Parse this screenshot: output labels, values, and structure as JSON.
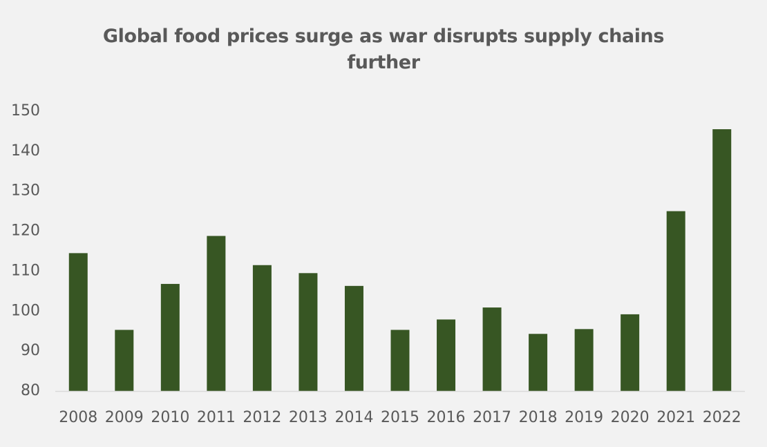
{
  "chart_data": {
    "type": "bar",
    "title_lines": [
      "Global food prices surge as war disrupts supply chains",
      "further"
    ],
    "categories": [
      "2008",
      "2009",
      "2010",
      "2011",
      "2012",
      "2013",
      "2014",
      "2015",
      "2016",
      "2017",
      "2018",
      "2019",
      "2020",
      "2021",
      "2022"
    ],
    "values": [
      114.5,
      95.3,
      106.8,
      118.8,
      111.5,
      109.5,
      106.3,
      95.3,
      97.9,
      100.9,
      94.3,
      95.5,
      99.2,
      125.0,
      145.5
    ],
    "ylim": [
      80,
      150
    ],
    "yticks": [
      "80",
      "90",
      "100",
      "110",
      "120",
      "130",
      "140",
      "150"
    ],
    "bar_color": "#375623",
    "axis_color": "#d9d9d9",
    "grid": false,
    "legend": "none"
  }
}
